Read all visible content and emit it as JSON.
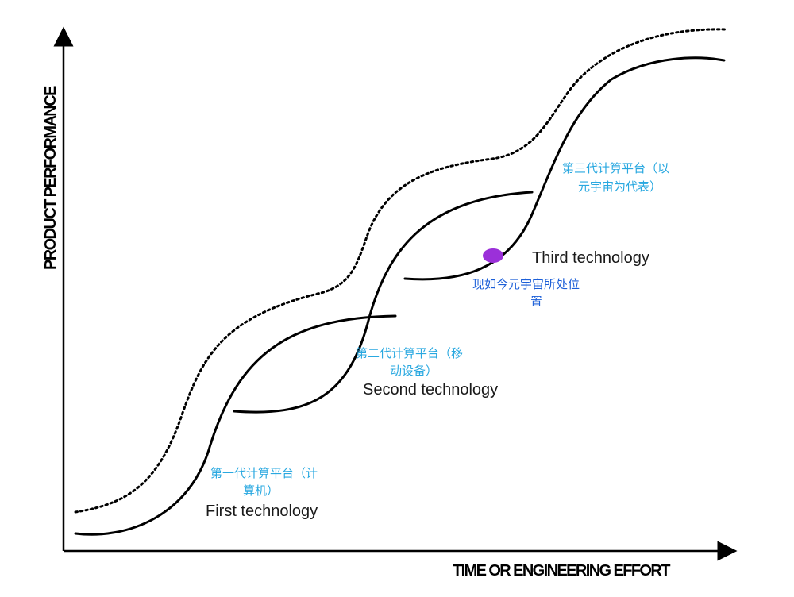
{
  "axes": {
    "y_label": "PRODUCT PERFORMANCE",
    "x_label": "TIME OR ENGINEERING EFFORT"
  },
  "technologies": [
    {
      "id": "first",
      "label": "First technology",
      "cn_lines": [
        "第一代计算平台（计",
        "算机）"
      ]
    },
    {
      "id": "second",
      "label": "Second technology",
      "cn_lines": [
        "第二代计算平台（移",
        "动设备）"
      ]
    },
    {
      "id": "third",
      "label": "Third technology",
      "cn_lines": [
        "第三代计算平台（以",
        "元宇宙为代表）"
      ]
    }
  ],
  "current_position": {
    "lines": [
      "现如今元宇宙所处位",
      "置"
    ],
    "marker_color": "#9b30d9"
  },
  "watermark": "",
  "colors": {
    "curve": "#000000",
    "cn_label": "#29a8e0",
    "current_label": "#1c5fd8"
  }
}
